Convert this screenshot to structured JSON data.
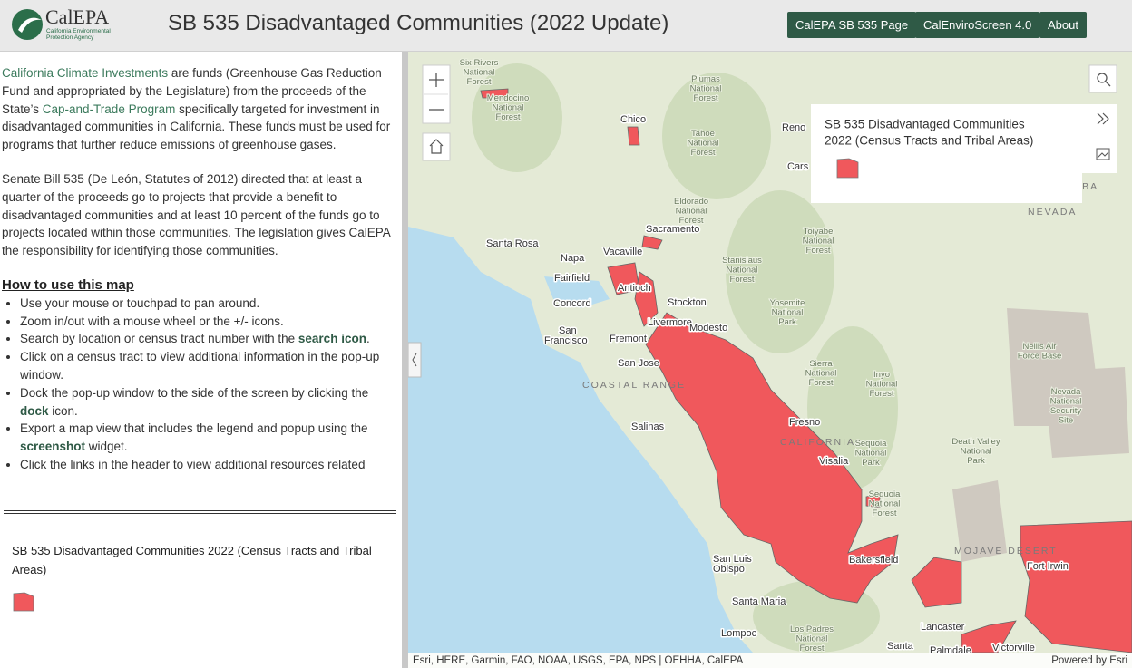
{
  "header": {
    "logo_name": "CalEPA",
    "logo_sub": [
      "California Environmental",
      "Protection Agency"
    ],
    "title": "SB 535 Disadvantaged Communities (2022 Update)",
    "buttons": [
      "CalEPA SB 535 Page",
      "CalEnviroScreen 4.0",
      "About"
    ]
  },
  "sidebar": {
    "intro": [
      "California Climate Investments",
      " are funds (Greenhouse Gas Reduction Fund and appropriated by the Legislature) from the proceeds of the State’s ",
      "Cap-and-Trade Program",
      "  specifically targeted for investment in disadvantaged communities in  California. These funds must be used for programs that further reduce emissions of greenhouse gases."
    ],
    "bill": "Senate Bill 535 (De León, Statutes of 2012) directed that at least a quarter of the proceeds go to projects that provide a benefit to disadvantaged communities and at least 10 percent of the funds go to  projects located within those communities. The legislation gives CalEPA  the responsibility for identifying those communities.",
    "how_title": "How to use this map",
    "steps": [
      [
        "Use your mouse or touchpad to pan around."
      ],
      [
        "Zoom in/out with a mouse wheel or the +/- icons."
      ],
      [
        "Search by location or census tract number with the ",
        "search icon",
        "."
      ],
      [
        "Click on a census tract to view additional information in the pop-up window."
      ],
      [
        "Dock the pop-up window to the side of the screen by clicking the ",
        "dock",
        " icon."
      ],
      [
        "Export a map view that includes the legend and popup using the ",
        "screenshot",
        " widget."
      ],
      [
        "Click the links in the header to view additional resources related"
      ]
    ],
    "legend_title": "SB 535 Disadvantaged Communities 2022 (Census Tracts and Tribal Areas)"
  },
  "map": {
    "legend_title": [
      "SB 535 Disadvantaged Communities",
      "2022 (Census Tracts and Tribal Areas)"
    ],
    "cities": [
      "Chico",
      "Reno",
      "Cars",
      "Sacramento",
      "Santa Rosa",
      "Napa",
      "Vacaville",
      "Fairfield",
      "Concord",
      "Antioch",
      "Stockton",
      "San",
      "Francisco",
      "Livermore",
      "Modesto",
      "Fremont",
      "San Jose",
      "Salinas",
      "Fresno",
      "Visalia",
      "Bakersfield",
      "San Luis",
      "Obispo",
      "Santa Maria",
      "Lompoc",
      "Lancaster",
      "Palmdale",
      "Victorville",
      "Santa",
      "Fort Irwin"
    ],
    "regions": [
      "COASTAL RANGE",
      "CALIFORNIA",
      "NEVADA",
      "MOJAVE DESERT",
      "T  BA"
    ],
    "areas": [
      [
        "Six Rivers",
        "National",
        "Forest"
      ],
      [
        "Mendocino",
        "National",
        "Forest"
      ],
      [
        "Plumas",
        "National",
        "Forest"
      ],
      [
        "Tahoe",
        "National",
        "Forest"
      ],
      [
        "Eldorado",
        "National",
        "Forest"
      ],
      [
        "Toiyabe",
        "National",
        "Forest"
      ],
      [
        "Stanislaus",
        "National",
        "Forest"
      ],
      [
        "Yosemite",
        "National",
        "Park"
      ],
      [
        "Sierra",
        "National",
        "Forest"
      ],
      [
        "Inyo",
        "National",
        "Forest"
      ],
      [
        "Sequoia",
        "National",
        "Park"
      ],
      [
        "Sequoia",
        "National",
        "Forest"
      ],
      [
        "Death Valley",
        "National",
        "Park"
      ],
      [
        "Nellis Air",
        "Force Base"
      ],
      [
        "Nevada",
        "National",
        "Security",
        "Site"
      ],
      [
        "Los Padres",
        "National",
        "Forest"
      ]
    ],
    "attribution": "Esri, HERE, Garmin, FAO, NOAA, USGS, EPA, NPS | OEHHA, CalEPA",
    "powered": "Powered by Esri"
  }
}
